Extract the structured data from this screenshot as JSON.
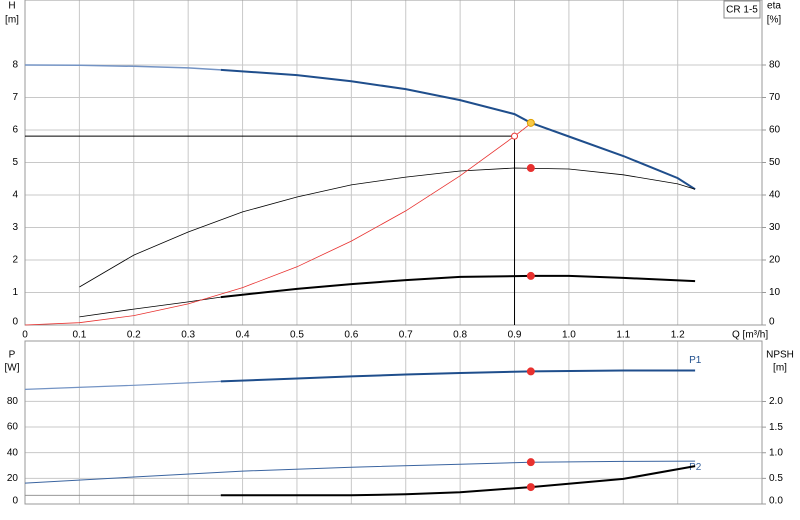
{
  "chart_data": [
    {
      "type": "line",
      "y_label": "H",
      "y_unit": "[m]",
      "y2_label": "eta",
      "y2_unit": "[%]",
      "x_label": "Q [m³/h]",
      "model": "CR 1-5",
      "xlim": [
        0,
        1.355
      ],
      "ylim": [
        0,
        10
      ],
      "y2lim": [
        0,
        100
      ],
      "grid": true,
      "xticks": [
        0,
        0.1,
        0.2,
        0.3,
        0.4,
        0.5,
        0.6,
        0.7,
        0.8,
        0.9,
        {
          "value": 1,
          "label": "1.0"
        },
        1.1,
        1.2
      ],
      "yticks": [
        0,
        1,
        2,
        3,
        4,
        5,
        6,
        7,
        8
      ],
      "y2ticks": [
        0,
        10,
        20,
        30,
        40,
        50,
        60,
        70,
        80
      ],
      "series": [
        {
          "color": "#7393c4",
          "width": 1.5,
          "x": [
            0,
            0.1,
            0.2,
            0.3,
            0.36
          ],
          "values": [
            8.0,
            7.99,
            7.96,
            7.91,
            7.85
          ]
        },
        {
          "color": "#1f4e8c",
          "width": 2,
          "x": [
            0.36,
            0.5,
            0.6,
            0.7,
            0.8,
            0.9,
            0.93,
            1.0,
            1.1,
            1.2,
            1.232
          ],
          "values": [
            7.85,
            7.69,
            7.5,
            7.26,
            6.92,
            6.49,
            6.22,
            5.8,
            5.2,
            4.52,
            4.18
          ]
        },
        {
          "color": "#000000",
          "width": 0.8,
          "axis": "y2",
          "x": [
            0.1,
            0.2,
            0.3,
            0.4,
            0.5,
            0.6,
            0.7,
            0.8,
            0.9,
            1.0,
            1.1,
            1.2,
            1.232
          ],
          "values": [
            11.7,
            21.5,
            28.6,
            34.8,
            39.4,
            43.1,
            45.5,
            47.4,
            48.3,
            48.0,
            46.2,
            43.4,
            41.8
          ]
        },
        {
          "color": "#000000",
          "width": 0.8,
          "axis": "y2",
          "x": [
            0.1,
            0.2,
            0.3,
            0.36
          ],
          "values": [
            2.5,
            4.9,
            7.1,
            8.6
          ]
        },
        {
          "color": "#000000",
          "width": 2,
          "axis": "y2",
          "x": [
            0.36,
            0.5,
            0.6,
            0.7,
            0.8,
            0.93,
            1.0,
            1.1,
            1.232
          ],
          "values": [
            8.6,
            11.1,
            12.6,
            13.8,
            14.8,
            15.1,
            15.1,
            14.5,
            13.5
          ]
        },
        {
          "color": "#e8312f",
          "width": 0.8,
          "x": [
            0,
            0.1,
            0.2,
            0.3,
            0.4,
            0.5,
            0.6,
            0.7,
            0.8,
            0.9,
            0.93
          ],
          "values": [
            0,
            0.07,
            0.29,
            0.65,
            1.15,
            1.79,
            2.58,
            3.51,
            4.59,
            5.81,
            6.2
          ]
        }
      ],
      "markers": [
        {
          "x": 0.93,
          "y": 6.22,
          "color": "#f7c948"
        },
        {
          "x": 0.9,
          "y": 5.81,
          "color": "#e8312f",
          "hollow": true,
          "guides": true
        },
        {
          "x": 0.93,
          "y": 48.3,
          "axis": "y2",
          "color": "#e8312f"
        },
        {
          "x": 0.93,
          "y": 15.1,
          "axis": "y2",
          "color": "#e8312f"
        }
      ]
    },
    {
      "type": "line",
      "y_label": "P",
      "y_unit": "[W]",
      "y2_label": "NPSH",
      "y2_unit": "[m]",
      "xlim": [
        0,
        1.355
      ],
      "ylim": [
        0,
        127
      ],
      "y2lim": [
        0,
        3.18
      ],
      "grid": true,
      "yticks": [
        0,
        20,
        40,
        60,
        80
      ],
      "y2ticks": [
        {
          "value": 0,
          "label": "0.0"
        },
        0.5,
        {
          "value": 1,
          "label": "1.0"
        },
        1.5,
        {
          "value": 2,
          "label": "2.0"
        }
      ],
      "series": [
        {
          "color": "#7393c4",
          "width": 1.2,
          "x": [
            0,
            0.2,
            0.36
          ],
          "values": [
            89.3,
            92.5,
            95.5
          ]
        },
        {
          "name": "P1",
          "label_position": "above",
          "color": "#1f4e8c",
          "width": 2,
          "x": [
            0.36,
            0.5,
            0.6,
            0.7,
            0.8,
            0.93,
            1.1,
            1.232
          ],
          "values": [
            95.5,
            97.8,
            99.4,
            100.9,
            102.1,
            103.3,
            104,
            104
          ]
        },
        {
          "name": "P2",
          "label_position": "below",
          "color": "#3a64a0",
          "width": 1,
          "x": [
            0,
            0.2,
            0.4,
            0.6,
            0.8,
            0.93,
            1.1,
            1.232
          ],
          "values": [
            16.3,
            21,
            25.6,
            28.7,
            31,
            32.6,
            33.2,
            33.4
          ]
        },
        {
          "color": "#888888",
          "width": 0.8,
          "axis": "y2",
          "x": [
            0,
            0.36
          ],
          "values": [
            0.17,
            0.17
          ]
        },
        {
          "color": "#000000",
          "width": 2,
          "axis": "y2",
          "x": [
            0.36,
            0.5,
            0.6,
            0.7,
            0.8,
            0.93,
            1.1,
            1.232
          ],
          "values": [
            0.17,
            0.17,
            0.17,
            0.19,
            0.23,
            0.33,
            0.49,
            0.74
          ]
        }
      ],
      "markers": [
        {
          "x": 0.93,
          "y": 103.3,
          "color": "#e8312f"
        },
        {
          "x": 0.93,
          "y": 32.6,
          "color": "#e8312f"
        },
        {
          "x": 0.93,
          "y": 0.33,
          "axis": "y2",
          "color": "#e8312f"
        }
      ]
    }
  ]
}
